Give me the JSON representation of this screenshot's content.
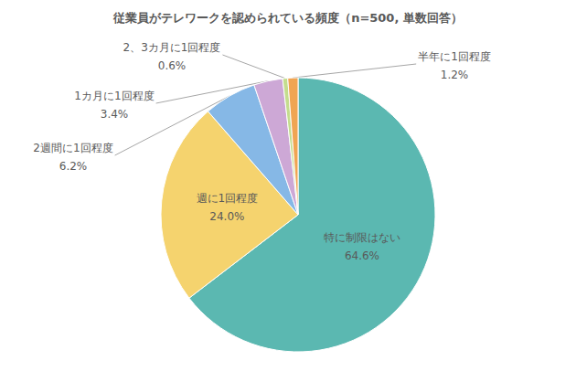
{
  "chart_data": {
    "type": "pie",
    "title": "従業員がテレワークを認められている頻度（n=500, 単数回答）",
    "categories": [
      "特に制限はない",
      "週に1回程度",
      "2週間に1回程度",
      "1カ月に1回程度",
      "2、3カ月に1回程度",
      "半年に1回程度"
    ],
    "values": [
      64.6,
      24.0,
      6.2,
      3.4,
      0.6,
      1.2
    ],
    "value_labels": [
      "64.6%",
      "24.0%",
      "6.2%",
      "3.4%",
      "0.6%",
      "1.2%"
    ],
    "colors": [
      "#5bb8b1",
      "#f5d36e",
      "#86b8e6",
      "#cda8d6",
      "#c4dd8e",
      "#f0a553"
    ],
    "data_labels": true
  }
}
